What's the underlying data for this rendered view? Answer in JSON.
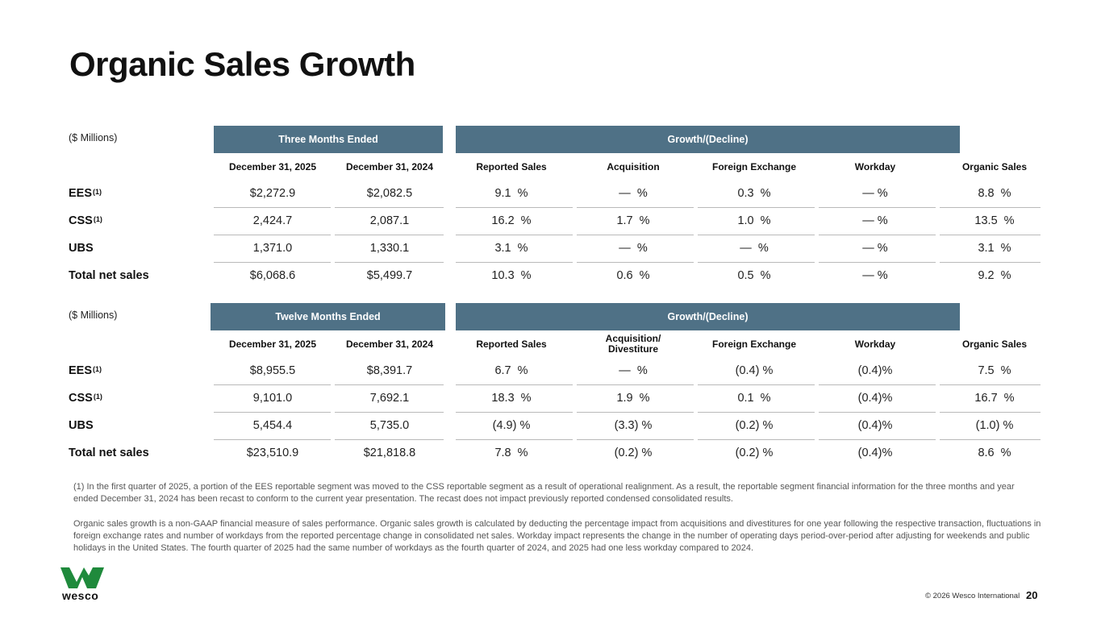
{
  "title": "Organic Sales Growth",
  "three_months": {
    "unit_label": "($ Millions)",
    "period_header": "Three Months Ended",
    "growth_header": "Growth/(Decline)",
    "columns": [
      "December 31, 2025",
      "December 31, 2024",
      "Reported Sales",
      "Acquisition",
      "Foreign Exchange",
      "Workday",
      "Organic Sales"
    ],
    "rows": [
      {
        "label": "EES",
        "sup": "(1)",
        "cells": [
          "$2,272.9",
          "$2,082.5",
          "9.1  %",
          "—  %",
          "0.3  %",
          "— %",
          "8.8  %"
        ]
      },
      {
        "label": "CSS",
        "sup": "(1)",
        "cells": [
          "2,424.7",
          "2,087.1",
          "16.2  %",
          "1.7  %",
          "1.0  %",
          "— %",
          "13.5  %"
        ]
      },
      {
        "label": "UBS",
        "sup": "",
        "cells": [
          "1,371.0",
          "1,330.1",
          "3.1  %",
          "—  %",
          "—  %",
          "— %",
          "3.1  %"
        ]
      },
      {
        "label": "Total net sales",
        "sup": "",
        "cells": [
          "$6,068.6",
          "$5,499.7",
          "10.3  %",
          "0.6  %",
          "0.5  %",
          "— %",
          "9.2  %"
        ]
      }
    ]
  },
  "twelve_months": {
    "unit_label": "($ Millions)",
    "period_header": "Twelve Months Ended",
    "growth_header": "Growth/(Decline)",
    "columns": [
      "December 31, 2025",
      "December 31, 2024",
      "Reported Sales",
      "Acquisition/ Divestiture",
      "Foreign Exchange",
      "Workday",
      "Organic Sales"
    ],
    "rows": [
      {
        "label": "EES",
        "sup": "(1)",
        "cells": [
          "$8,955.5",
          "$8,391.7",
          "6.7  %",
          "—  %",
          "(0.4) %",
          "(0.4)%",
          "7.5  %"
        ]
      },
      {
        "label": "CSS",
        "sup": "(1)",
        "cells": [
          "9,101.0",
          "7,692.1",
          "18.3  %",
          "1.9  %",
          "0.1  %",
          "(0.4)%",
          "16.7  %"
        ]
      },
      {
        "label": "UBS",
        "sup": "",
        "cells": [
          "5,454.4",
          "5,735.0",
          "(4.9) %",
          "(3.3) %",
          "(0.2) %",
          "(0.4)%",
          "(1.0) %"
        ]
      },
      {
        "label": "Total net sales",
        "sup": "",
        "cells": [
          "$23,510.9",
          "$21,818.8",
          "7.8  %",
          "(0.2) %",
          "(0.2) %",
          "(0.4)%",
          "8.6  %"
        ]
      }
    ]
  },
  "footnotes": {
    "note1": "(1) In the first quarter of 2025, a portion of the EES reportable segment was moved to the CSS reportable segment as a result of operational realignment. As a result, the reportable segment financial information for the three months and year ended December 31, 2024 has been recast to conform to the current year presentation. The recast does not impact previously reported condensed consolidated results.",
    "note2": "Organic sales growth is a non-GAAP financial measure of sales performance. Organic sales growth is calculated by deducting the percentage impact from acquisitions and divestitures for one year following the respective transaction, fluctuations in foreign exchange rates and number of workdays from the reported percentage change in consolidated net sales. Workday impact represents the change in the number of operating days period-over-period after adjusting for weekends and public holidays in the United States. The fourth quarter of 2025 had the same number of workdays as the fourth quarter of 2024, and 2025 had one less workday compared to 2024."
  },
  "footer": {
    "logo_text": "wesco",
    "copyright": "© 2026 Wesco International",
    "page_number": "20"
  },
  "colors": {
    "header_band": "#4f7186",
    "logo_green": "#1f8a3c"
  }
}
